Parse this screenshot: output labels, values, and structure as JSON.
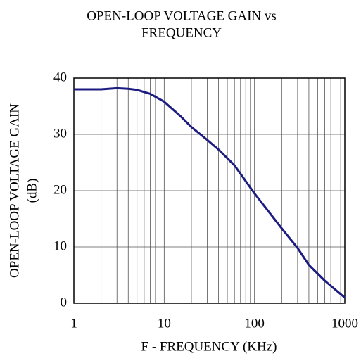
{
  "chart_data": {
    "type": "line",
    "title": [
      "OPEN-LOOP VOLTAGE GAIN vs",
      "FREQUENCY"
    ],
    "x_label": "F - FREQUENCY (KHz)",
    "y_label": [
      "OPEN-LOOP VOLTAGE GAIN",
      "(dB)"
    ],
    "x": [
      1,
      2,
      3,
      4,
      5,
      7,
      10,
      15,
      20,
      30,
      40,
      60,
      100,
      200,
      300,
      400,
      600,
      800,
      1000
    ],
    "series": [
      {
        "name": "Gain",
        "color": "#1c1c80",
        "values": [
          38,
          38,
          38.2,
          38.1,
          37.9,
          37.2,
          35.8,
          33.3,
          31.3,
          29,
          27.3,
          24.5,
          19.5,
          13.3,
          9.8,
          6.8,
          4,
          2.3,
          1
        ]
      }
    ],
    "xlim": [
      1,
      1000
    ],
    "xticks": [
      1,
      10,
      100,
      1000
    ],
    "xscale": "log",
    "ylim": [
      0,
      40
    ],
    "yticks": [
      0,
      10,
      20,
      30,
      40
    ],
    "grid": true
  }
}
